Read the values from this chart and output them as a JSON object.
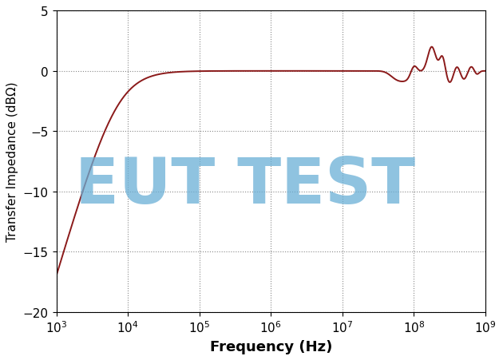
{
  "title": "",
  "xlabel": "Frequency (Hz)",
  "ylabel": "Transfer Impedance (dBΩ)",
  "xlim_log": [
    3,
    9
  ],
  "ylim": [
    -20,
    5
  ],
  "yticks": [
    -20,
    -15,
    -10,
    -5,
    0,
    5
  ],
  "line_color": "#8B1A1A",
  "line_width": 1.4,
  "background_color": "#ffffff",
  "grid_color": "#888888",
  "watermark_text": "EUT TEST",
  "watermark_color": "#6aafd6",
  "watermark_alpha": 0.75,
  "watermark_fontsize": 58,
  "xlabel_fontsize": 13,
  "ylabel_fontsize": 11,
  "tick_fontsize": 11
}
